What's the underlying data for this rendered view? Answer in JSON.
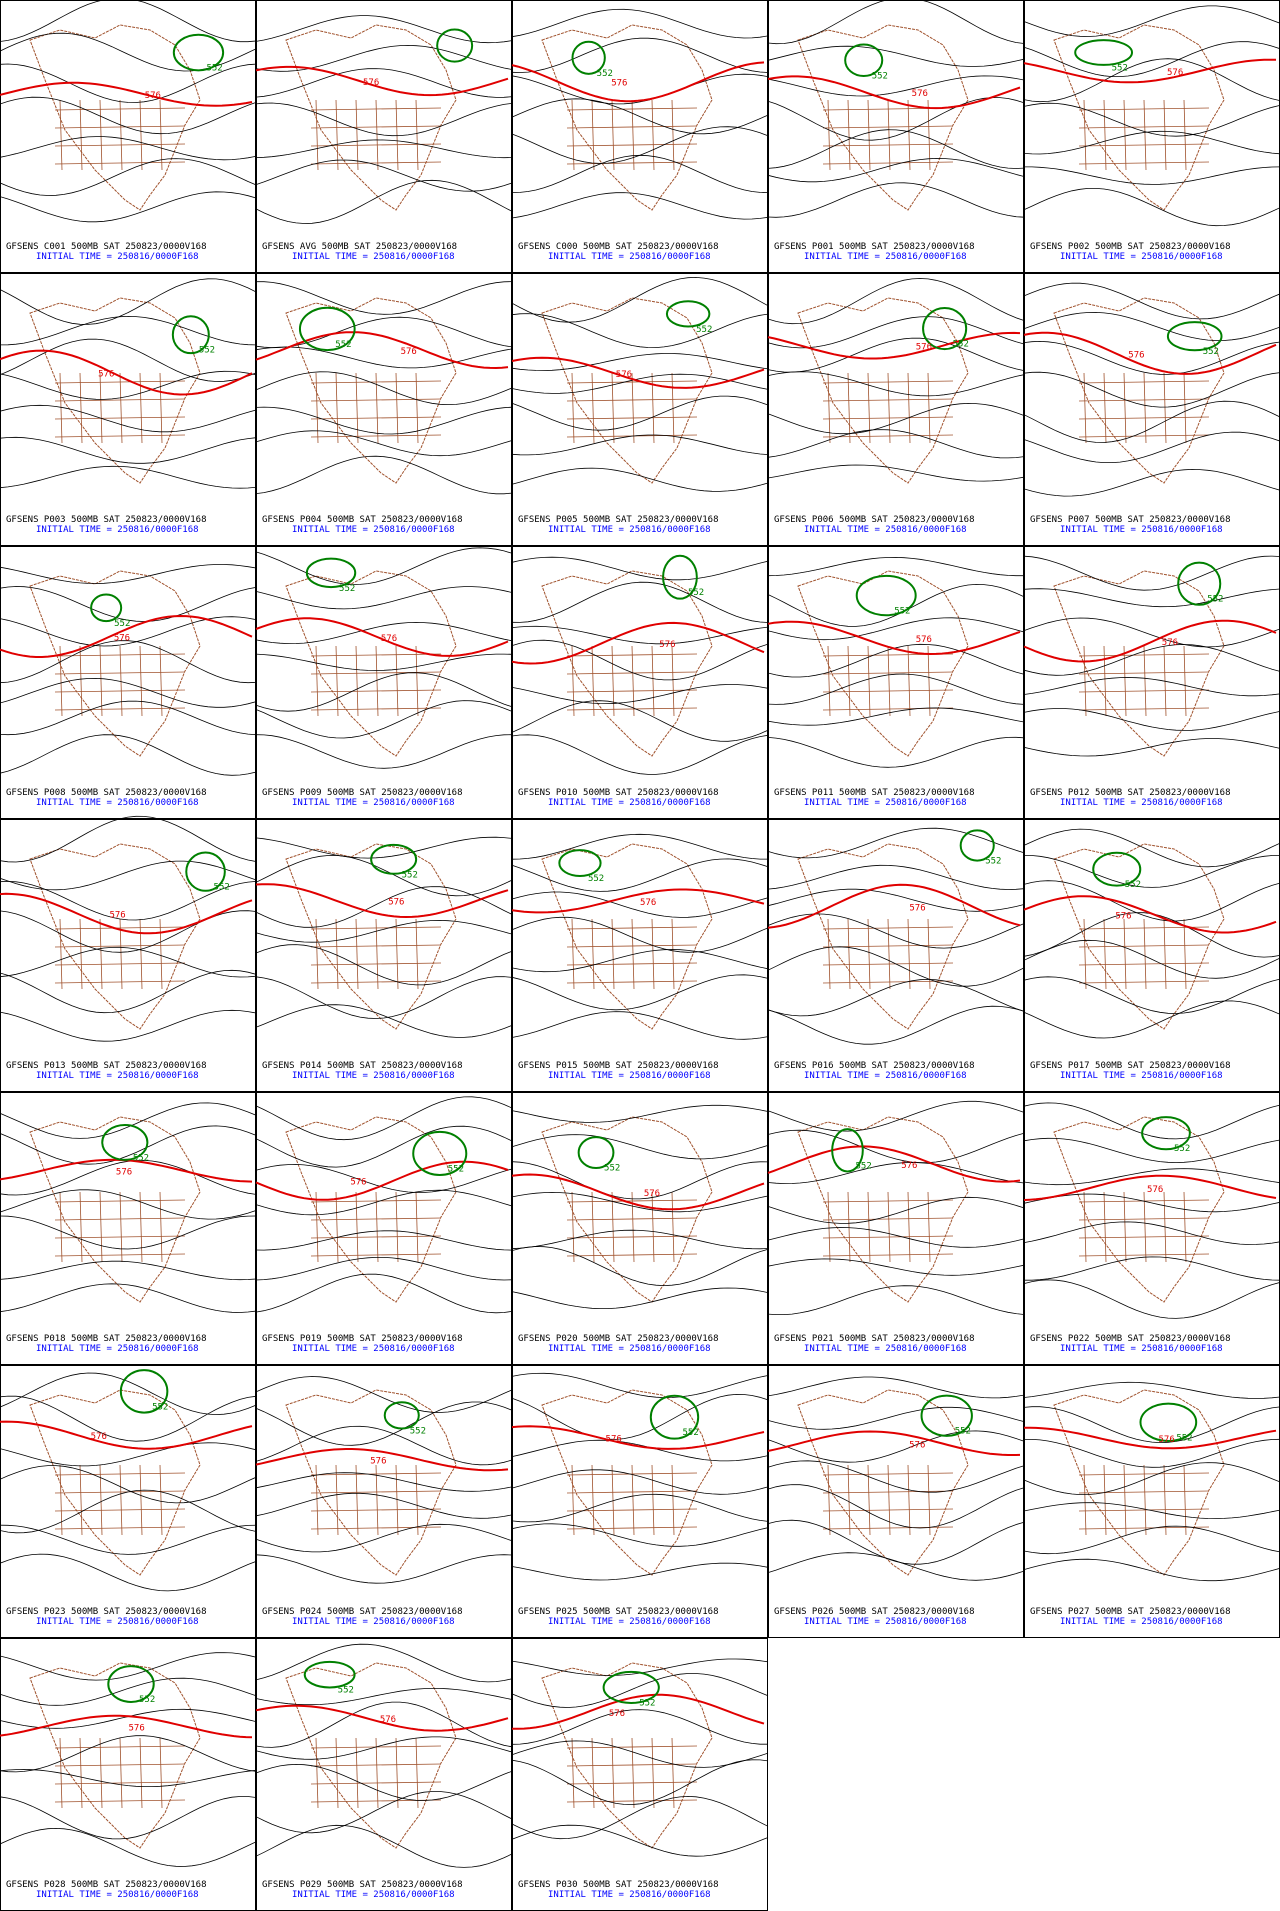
{
  "panels": [
    {
      "label": "GFSENS C001 500MB SAT 250823/0000V168",
      "time": "INITIAL TIME = 250816/0000F168",
      "contours": [
        "576",
        "552"
      ]
    },
    {
      "label": "GFSENS AVG 500MB SAT 250823/0000V168",
      "time": "INITIAL TIME = 250816/0000F168",
      "contours": [
        "576"
      ]
    },
    {
      "label": "GFSENS C000 500MB SAT 250823/0000V168",
      "time": "INITIAL TIME = 250816/0000F168",
      "contours": [
        "576",
        "552"
      ]
    },
    {
      "label": "GFSENS P001 500MB SAT 250823/0000V168",
      "time": "INITIAL TIME = 250816/0000F168",
      "contours": [
        "576",
        "552"
      ]
    },
    {
      "label": "GFSENS P002 500MB SAT 250823/0000V168",
      "time": "INITIAL TIME = 250816/0000F168",
      "contours": [
        "576",
        "552"
      ]
    },
    {
      "label": "GFSENS P003 500MB SAT 250823/0000V168",
      "time": "INITIAL TIME = 250816/0000F168",
      "contours": [
        "576",
        "552"
      ]
    },
    {
      "label": "GFSENS P004 500MB SAT 250823/0000V168",
      "time": "INITIAL TIME = 250816/0000F168",
      "contours": [
        "576",
        "552"
      ]
    },
    {
      "label": "GFSENS P005 500MB SAT 250823/0000V168",
      "time": "INITIAL TIME = 250816/0000F168",
      "contours": [
        "576",
        "552"
      ]
    },
    {
      "label": "GFSENS P006 500MB SAT 250823/0000V168",
      "time": "INITIAL TIME = 250816/0000F168",
      "contours": [
        "576",
        "552"
      ]
    },
    {
      "label": "GFSENS P007 500MB SAT 250823/0000V168",
      "time": "INITIAL TIME = 250816/0000F168",
      "contours": [
        "576",
        "552"
      ]
    },
    {
      "label": "GFSENS P008 500MB SAT 250823/0000V168",
      "time": "INITIAL TIME = 250816/0000F168",
      "contours": [
        "576",
        "552"
      ]
    },
    {
      "label": "GFSENS P009 500MB SAT 250823/0000V168",
      "time": "INITIAL TIME = 250816/0000F168",
      "contours": [
        "576",
        "552"
      ]
    },
    {
      "label": "GFSENS P010 500MB SAT 250823/0000V168",
      "time": "INITIAL TIME = 250816/0000F168",
      "contours": [
        "576",
        "552"
      ]
    },
    {
      "label": "GFSENS P011 500MB SAT 250823/0000V168",
      "time": "INITIAL TIME = 250816/0000F168",
      "contours": [
        "576",
        "552"
      ]
    },
    {
      "label": "GFSENS P012 500MB SAT 250823/0000V168",
      "time": "INITIAL TIME = 250816/0000F168",
      "contours": [
        "576",
        "552"
      ]
    },
    {
      "label": "GFSENS P013 500MB SAT 250823/0000V168",
      "time": "INITIAL TIME = 250816/0000F168",
      "contours": [
        "576",
        "552"
      ]
    },
    {
      "label": "GFSENS P014 500MB SAT 250823/0000V168",
      "time": "INITIAL TIME = 250816/0000F168",
      "contours": [
        "576",
        "552"
      ]
    },
    {
      "label": "GFSENS P015 500MB SAT 250823/0000V168",
      "time": "INITIAL TIME = 250816/0000F168",
      "contours": [
        "576",
        "552"
      ]
    },
    {
      "label": "GFSENS P016 500MB SAT 250823/0000V168",
      "time": "INITIAL TIME = 250816/0000F168",
      "contours": [
        "576",
        "552"
      ]
    },
    {
      "label": "GFSENS P017 500MB SAT 250823/0000V168",
      "time": "INITIAL TIME = 250816/0000F168",
      "contours": [
        "576",
        "552"
      ]
    },
    {
      "label": "GFSENS P018 500MB SAT 250823/0000V168",
      "time": "INITIAL TIME = 250816/0000F168",
      "contours": [
        "576",
        "552"
      ]
    },
    {
      "label": "GFSENS P019 500MB SAT 250823/0000V168",
      "time": "INITIAL TIME = 250816/0000F168",
      "contours": [
        "576",
        "552"
      ]
    },
    {
      "label": "GFSENS P020 500MB SAT 250823/0000V168",
      "time": "INITIAL TIME = 250816/0000F168",
      "contours": [
        "576",
        "552"
      ]
    },
    {
      "label": "GFSENS P021 500MB SAT 250823/0000V168",
      "time": "INITIAL TIME = 250816/0000F168",
      "contours": [
        "576",
        "552"
      ]
    },
    {
      "label": "GFSENS P022 500MB SAT 250823/0000V168",
      "time": "INITIAL TIME = 250816/0000F168",
      "contours": [
        "576",
        "552"
      ]
    },
    {
      "label": "GFSENS P023 500MB SAT 250823/0000V168",
      "time": "INITIAL TIME = 250816/0000F168",
      "contours": [
        "576",
        "552"
      ]
    },
    {
      "label": "GFSENS P024 500MB SAT 250823/0000V168",
      "time": "INITIAL TIME = 250816/0000F168",
      "contours": [
        "576",
        "552"
      ]
    },
    {
      "label": "GFSENS P025 500MB SAT 250823/0000V168",
      "time": "INITIAL TIME = 250816/0000F168",
      "contours": [
        "576",
        "552"
      ]
    },
    {
      "label": "GFSENS P026 500MB SAT 250823/0000V168",
      "time": "INITIAL TIME = 250816/0000F168",
      "contours": [
        "576",
        "552"
      ]
    },
    {
      "label": "GFSENS P027 500MB SAT 250823/0000V168",
      "time": "INITIAL TIME = 250816/0000F168",
      "contours": [
        "576",
        "552"
      ]
    },
    {
      "label": "GFSENS P028 500MB SAT 250823/0000V168",
      "time": "INITIAL TIME = 250816/0000F168",
      "contours": [
        "576",
        "552"
      ]
    },
    {
      "label": "GFSENS P029 500MB SAT 250823/0000V168",
      "time": "INITIAL TIME = 250816/0000F168",
      "contours": [
        "576",
        "552"
      ]
    },
    {
      "label": "GFSENS P030 500MB SAT 250823/0000V168",
      "time": "INITIAL TIME = 250816/0000F168",
      "contours": [
        "576",
        "552"
      ]
    }
  ]
}
